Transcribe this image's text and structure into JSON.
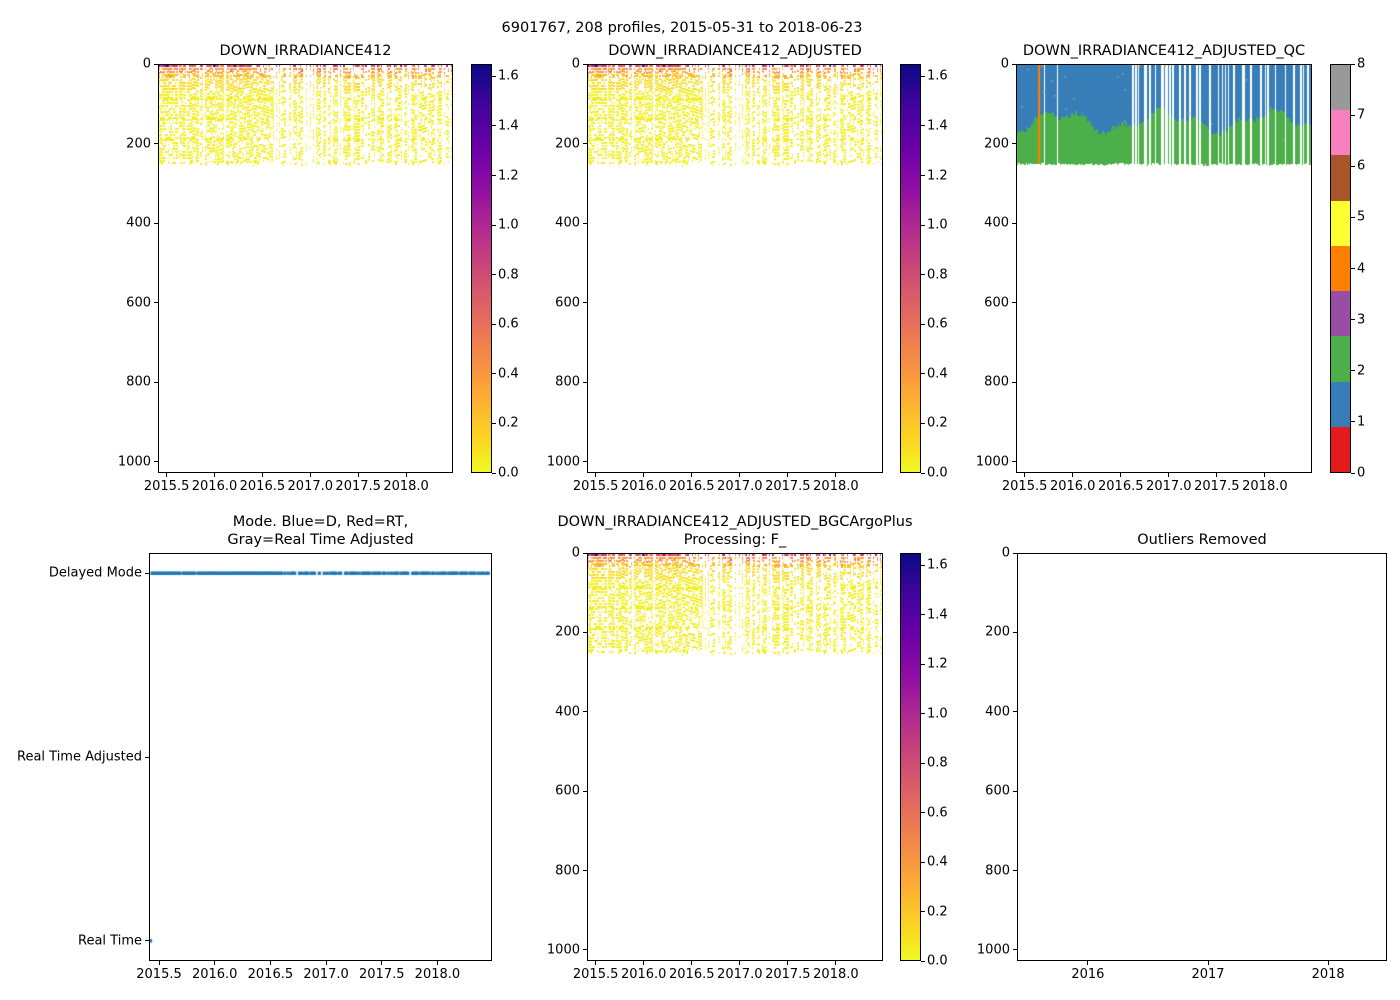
{
  "figure": {
    "suptitle": "6901767, 208 profiles, 2015-05-31 to 2018-06-23",
    "background": "#ffffff",
    "text_color": "#000000"
  },
  "palette": {
    "plasma_r_note": "matplotlib plasma reversed, yellow=0 to dark blue=max",
    "plasma_anchors": [
      "#0d0887",
      "#41049d",
      "#6a00a8",
      "#8f0da4",
      "#b12a90",
      "#cc4778",
      "#e16462",
      "#f2844b",
      "#fca636",
      "#fcce25",
      "#f0f921"
    ],
    "set1": [
      "#e41a1c",
      "#377eb8",
      "#4daf4a",
      "#984ea3",
      "#ff7f00",
      "#ffff33",
      "#a65628",
      "#f781bf",
      "#999999"
    ],
    "line_blue": "#1f77b4"
  },
  "chart_data": [
    {
      "id": "irradiance",
      "type": "heatmap",
      "title": "DOWN_IRRADIANCE412",
      "xlim": [
        2015.41,
        2018.49
      ],
      "ylim": [
        0,
        1028
      ],
      "y_inverted": true,
      "xticks": {
        "values": [
          2015.5,
          2016.0,
          2016.5,
          2017.0,
          2017.5,
          2018.0
        ],
        "labels": [
          "2015.5",
          "2016.0",
          "2016.5",
          "2017.0",
          "2017.5",
          "2018.0"
        ]
      },
      "yticks": {
        "values": [
          0,
          200,
          400,
          600,
          800,
          1000
        ],
        "labels": [
          "0",
          "200",
          "400",
          "600",
          "800",
          "1000"
        ]
      },
      "colorbar": {
        "kind": "gradient",
        "cmap": "plasma_r",
        "vmin": 0.0,
        "vmax": 1.65,
        "tick_values": [
          0.0,
          0.2,
          0.4,
          0.6,
          0.8,
          1.0,
          1.2,
          1.4,
          1.6
        ],
        "tick_labels": [
          "0.0",
          "0.2",
          "0.4",
          "0.6",
          "0.8",
          "1.0",
          "1.2",
          "1.4",
          "1.6"
        ]
      },
      "mesh": {
        "n_profiles": 208,
        "data_depth_max": 250,
        "surface_value_range": [
          0.5,
          1.65
        ],
        "deep_value_range": [
          0.0,
          0.1
        ],
        "sparse_columns_after_year": 2016.55,
        "missing_column_year": 2015.7,
        "seed": 11
      }
    },
    {
      "id": "irradiance_adjusted",
      "type": "heatmap",
      "title": "DOWN_IRRADIANCE412_ADJUSTED",
      "xlim": [
        2015.41,
        2018.49
      ],
      "ylim": [
        0,
        1028
      ],
      "y_inverted": true,
      "xticks": {
        "values": [
          2015.5,
          2016.0,
          2016.5,
          2017.0,
          2017.5,
          2018.0
        ],
        "labels": [
          "2015.5",
          "2016.0",
          "2016.5",
          "2017.0",
          "2017.5",
          "2018.0"
        ]
      },
      "yticks": {
        "values": [
          0,
          200,
          400,
          600,
          800,
          1000
        ],
        "labels": [
          "0",
          "200",
          "400",
          "600",
          "800",
          "1000"
        ]
      },
      "colorbar": {
        "kind": "gradient",
        "cmap": "plasma_r",
        "vmin": 0.0,
        "vmax": 1.65,
        "tick_values": [
          0.0,
          0.2,
          0.4,
          0.6,
          0.8,
          1.0,
          1.2,
          1.4,
          1.6
        ],
        "tick_labels": [
          "0.0",
          "0.2",
          "0.4",
          "0.6",
          "0.8",
          "1.0",
          "1.2",
          "1.4",
          "1.6"
        ]
      },
      "mesh": {
        "same_as": "irradiance"
      }
    },
    {
      "id": "irradiance_adjusted_qc",
      "type": "heatmap",
      "title": "DOWN_IRRADIANCE412_ADJUSTED_QC",
      "xlim": [
        2015.41,
        2018.49
      ],
      "ylim": [
        0,
        1028
      ],
      "y_inverted": true,
      "xticks": {
        "values": [
          2015.5,
          2016.0,
          2016.5,
          2017.0,
          2017.5,
          2018.0
        ],
        "labels": [
          "2015.5",
          "2016.0",
          "2016.5",
          "2017.0",
          "2017.5",
          "2018.0"
        ]
      },
      "yticks": {
        "values": [
          0,
          200,
          400,
          600,
          800,
          1000
        ],
        "labels": [
          "0",
          "200",
          "400",
          "600",
          "800",
          "1000"
        ]
      },
      "colorbar": {
        "kind": "discrete",
        "cmap": "Set1",
        "vmin": 0,
        "vmax": 8,
        "tick_values": [
          0,
          1,
          2,
          3,
          4,
          5,
          6,
          7,
          8
        ],
        "tick_labels": [
          "0",
          "1",
          "2",
          "3",
          "4",
          "5",
          "6",
          "7",
          "8"
        ]
      },
      "qc": {
        "surface_qc": 1,
        "deep_qc": 2,
        "boundary_depth_mean": 142,
        "boundary_depth_amp": 30,
        "column_bottom_depth": 250,
        "orange_column_year": 2015.64,
        "orange_qc": 4,
        "missing_column_year": 2015.7,
        "sparse_columns_after_year": 2016.55,
        "speck_qc_values": [
          8,
          6
        ],
        "seed": 11
      }
    },
    {
      "id": "mode",
      "type": "line",
      "title": "Mode. Blue=D, Red=RT,",
      "title2": "Gray=Real Time Adjusted",
      "xlim": [
        2015.41,
        2018.49
      ],
      "ylim": [
        -0.11,
        2.11
      ],
      "xticks": {
        "values": [
          2015.5,
          2016.0,
          2016.5,
          2017.0,
          2017.5,
          2018.0
        ],
        "labels": [
          "2015.5",
          "2016.0",
          "2016.5",
          "2017.0",
          "2017.5",
          "2018.0"
        ]
      },
      "yticks": {
        "values": [
          2,
          1,
          0
        ],
        "labels": [
          "Delayed Mode",
          "Real Time Adjusted",
          "Real Time"
        ]
      },
      "line": {
        "color": "#1f77b4",
        "marker_per_profile": true,
        "y_category": "Delayed Mode",
        "first_point_category": "Real Time"
      }
    },
    {
      "id": "irradiance_bgcargoplus",
      "type": "heatmap",
      "title": "DOWN_IRRADIANCE412_ADJUSTED_BGCArgoPlus",
      "title2": "Processing: F_",
      "xlim": [
        2015.41,
        2018.49
      ],
      "ylim": [
        0,
        1028
      ],
      "y_inverted": true,
      "xticks": {
        "values": [
          2015.5,
          2016.0,
          2016.5,
          2017.0,
          2017.5,
          2018.0
        ],
        "labels": [
          "2015.5",
          "2016.0",
          "2016.5",
          "2017.0",
          "2017.5",
          "2018.0"
        ]
      },
      "yticks": {
        "values": [
          0,
          200,
          400,
          600,
          800,
          1000
        ],
        "labels": [
          "0",
          "200",
          "400",
          "600",
          "800",
          "1000"
        ]
      },
      "colorbar": {
        "kind": "gradient",
        "cmap": "plasma_r",
        "vmin": 0.0,
        "vmax": 1.65,
        "tick_values": [
          0.0,
          0.2,
          0.4,
          0.6,
          0.8,
          1.0,
          1.2,
          1.4,
          1.6
        ],
        "tick_labels": [
          "0.0",
          "0.2",
          "0.4",
          "0.6",
          "0.8",
          "1.0",
          "1.2",
          "1.4",
          "1.6"
        ]
      },
      "mesh": {
        "same_as": "irradiance"
      }
    },
    {
      "id": "outliers",
      "type": "scatter",
      "title": "Outliers Removed",
      "points": [],
      "xlim": [
        2015.41,
        2018.49
      ],
      "ylim": [
        0,
        1028
      ],
      "y_inverted": true,
      "xticks": {
        "values": [
          2016,
          2017,
          2018
        ],
        "labels": [
          "2016",
          "2017",
          "2018"
        ]
      },
      "yticks": {
        "values": [
          0,
          200,
          400,
          600,
          800,
          1000
        ],
        "labels": [
          "0",
          "200",
          "400",
          "600",
          "800",
          "1000"
        ]
      }
    }
  ]
}
